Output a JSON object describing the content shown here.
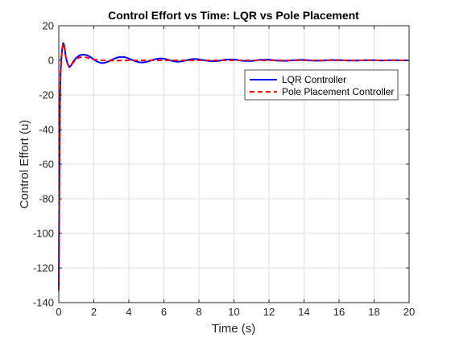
{
  "chart_data": {
    "type": "line",
    "title": "Control Effort vs Time: LQR vs Pole Placement",
    "xlabel": "Time (s)",
    "ylabel": "Control Effort (u)",
    "xlim": [
      0,
      20
    ],
    "ylim": [
      -140,
      20
    ],
    "xticks": [
      0,
      2,
      4,
      6,
      8,
      10,
      12,
      14,
      16,
      18,
      20
    ],
    "yticks": [
      -140,
      -120,
      -100,
      -80,
      -60,
      -40,
      -20,
      0,
      20
    ],
    "grid": true,
    "legend_position": "upper-right",
    "series": [
      {
        "name": "LQR Controller",
        "color": "#0000ff",
        "style": "solid",
        "x": [
          0,
          0.02,
          0.06,
          0.1,
          0.15,
          0.2,
          0.25,
          0.3,
          0.35,
          0.4,
          0.5,
          0.6,
          0.7,
          0.8,
          1.0,
          1.2,
          1.4,
          1.6,
          1.8,
          2.0,
          2.2,
          2.4,
          2.6,
          2.8,
          3.0,
          3.2,
          3.4,
          3.6,
          3.8,
          4.0,
          4.2,
          4.4,
          4.6,
          4.8,
          5.0,
          5.2,
          5.4,
          5.6,
          5.8,
          6.0,
          6.2,
          6.4,
          6.6,
          6.8,
          7.0,
          7.2,
          7.4,
          7.6,
          7.8,
          8.0,
          8.5,
          9.0,
          9.5,
          10.0,
          10.5,
          11.0,
          11.5,
          12.0,
          12.5,
          13.0,
          13.5,
          14.0,
          14.5,
          15.0,
          15.5,
          16.0,
          16.5,
          17.0,
          17.5,
          18.0,
          18.5,
          19.0,
          19.5,
          20.0
        ],
        "values": [
          -133,
          -90,
          -30,
          -8,
          2,
          7,
          10,
          9,
          6,
          2,
          -2,
          -4,
          -3,
          -1,
          1.5,
          3,
          3.3,
          3,
          2,
          0.5,
          -0.8,
          -1.5,
          -1.5,
          -0.8,
          0.2,
          1.1,
          1.8,
          2.0,
          1.8,
          1.0,
          0.2,
          -0.6,
          -1.1,
          -1.2,
          -0.9,
          -0.3,
          0.4,
          0.9,
          1.1,
          1.0,
          0.5,
          -0.1,
          -0.6,
          -0.8,
          -0.6,
          -0.2,
          0.3,
          0.7,
          0.8,
          0.6,
          -0.3,
          -0.5,
          0.4,
          0.5,
          -0.3,
          -0.4,
          0.3,
          0.4,
          -0.2,
          -0.3,
          0.2,
          0.3,
          -0.2,
          -0.2,
          0.2,
          0.2,
          -0.1,
          -0.1,
          0.1,
          0.1,
          -0.1,
          0.1,
          0,
          0
        ]
      },
      {
        "name": "Pole Placement Controller",
        "color": "#ff0000",
        "style": "dashed",
        "x": [
          0,
          0.02,
          0.06,
          0.1,
          0.15,
          0.2,
          0.25,
          0.3,
          0.35,
          0.4,
          0.5,
          0.6,
          0.7,
          0.8,
          1.0,
          1.2,
          1.4,
          1.6,
          1.8,
          2.0,
          2.5,
          3.0,
          3.5,
          4.0,
          5.0,
          6.0,
          8.0,
          10.0,
          12.0,
          14.0,
          16.0,
          18.0,
          20.0
        ],
        "values": [
          -133,
          -90,
          -30,
          -8,
          2,
          7,
          9.5,
          8.5,
          5.5,
          2,
          -2,
          -3.5,
          -3,
          -1.5,
          0.8,
          1.8,
          2.0,
          1.6,
          1.0,
          0.5,
          0,
          -0.2,
          -0.1,
          0,
          0,
          0,
          0,
          0,
          0,
          0,
          0,
          0,
          0
        ]
      }
    ]
  }
}
